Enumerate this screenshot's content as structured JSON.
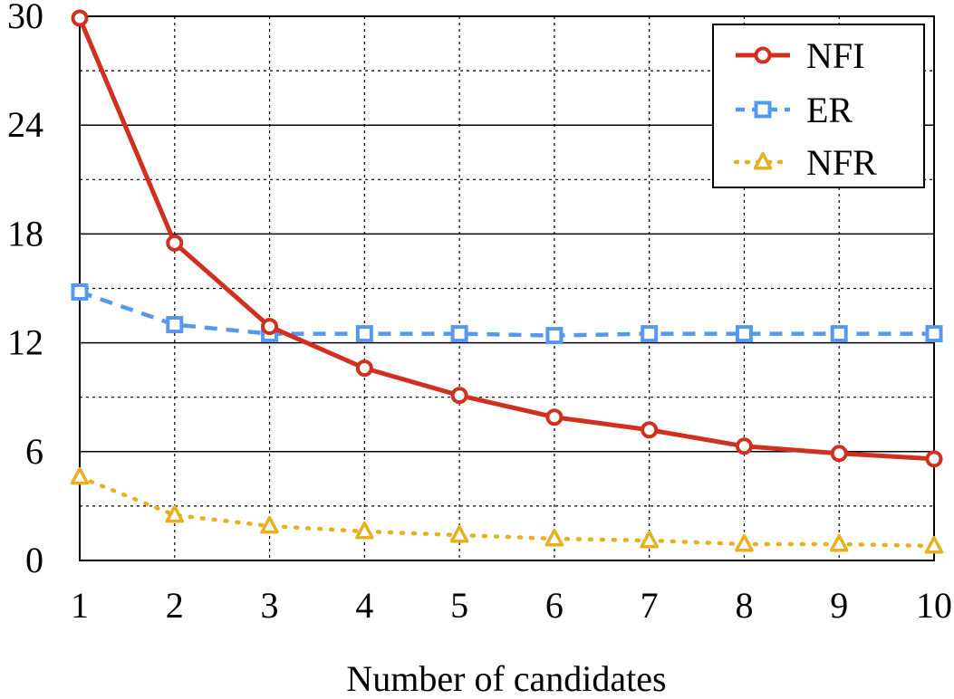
{
  "chart_data": {
    "type": "line",
    "title": "",
    "xlabel": "Number of candidates",
    "ylabel": "",
    "x": [
      1,
      2,
      3,
      4,
      5,
      6,
      7,
      8,
      9,
      10
    ],
    "x_ticks": [
      "1",
      "2",
      "3",
      "4",
      "5",
      "6",
      "7",
      "8",
      "9",
      "10"
    ],
    "xlim": [
      1,
      10
    ],
    "y_ticks": [
      "0",
      "6",
      "12",
      "18",
      "24",
      "30"
    ],
    "ylim": [
      0,
      30
    ],
    "grid": true,
    "legend_position": "top-right",
    "series": [
      {
        "name": "NFI",
        "marker": "circle",
        "line_style": "solid",
        "color": "#d03020",
        "values": [
          29.9,
          17.5,
          12.9,
          10.6,
          9.1,
          7.9,
          7.2,
          6.3,
          5.9,
          5.6
        ]
      },
      {
        "name": "ER",
        "marker": "square",
        "line_style": "dashed",
        "color": "#5599ee",
        "values": [
          14.8,
          13.0,
          12.5,
          12.5,
          12.5,
          12.4,
          12.5,
          12.5,
          12.5,
          12.5
        ]
      },
      {
        "name": "NFR",
        "marker": "triangle",
        "line_style": "dotted",
        "color": "#e8b020",
        "values": [
          4.6,
          2.5,
          1.9,
          1.6,
          1.4,
          1.2,
          1.1,
          0.9,
          0.9,
          0.8
        ]
      }
    ]
  }
}
